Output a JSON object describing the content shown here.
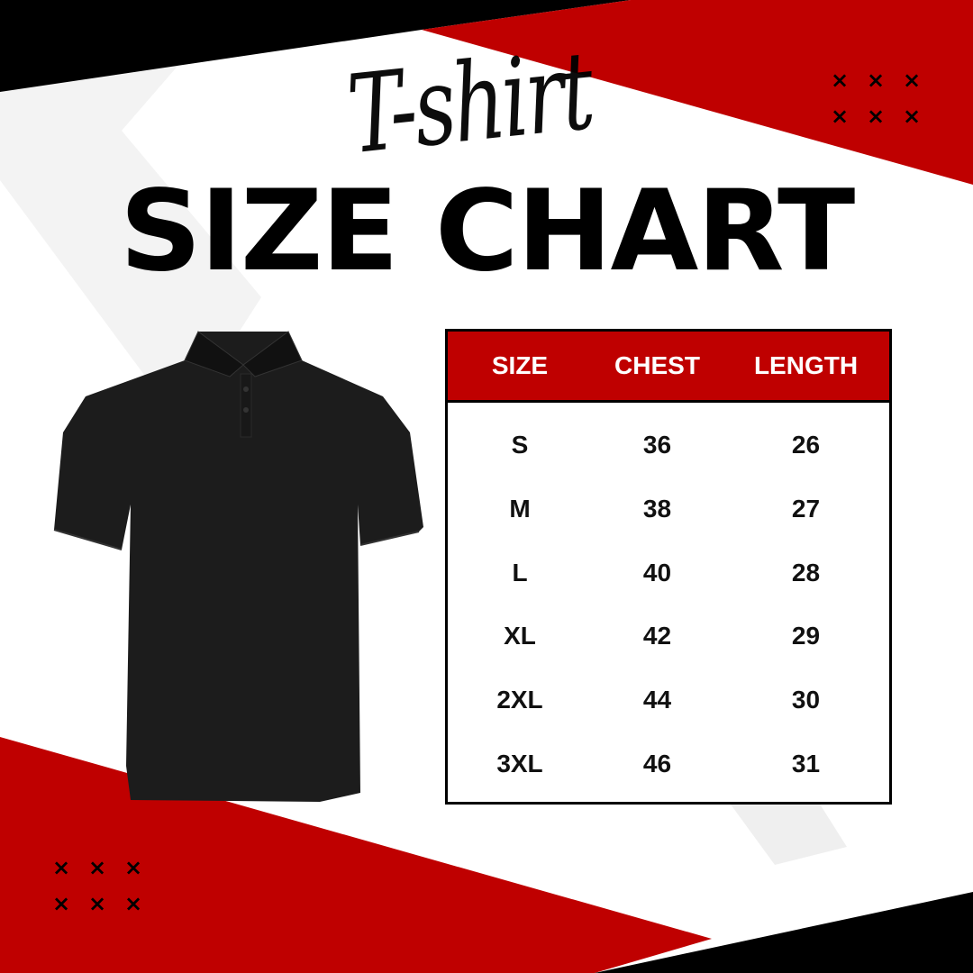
{
  "title": {
    "script": "T-shirt",
    "main": "SIZE CHART"
  },
  "decorations": {
    "cross_glyph": "×",
    "colors": {
      "red": "#bf0000",
      "black": "#000000",
      "white": "#ffffff"
    }
  },
  "product_image": {
    "icon": "polo-shirt-icon",
    "color": "#1c1c1c"
  },
  "table": {
    "headers": [
      "SIZE",
      "CHEST",
      "LENGTH"
    ],
    "rows": [
      [
        "S",
        "36",
        "26"
      ],
      [
        "M",
        "38",
        "27"
      ],
      [
        "L",
        "40",
        "28"
      ],
      [
        "XL",
        "42",
        "29"
      ],
      [
        "2XL",
        "44",
        "30"
      ],
      [
        "3XL",
        "46",
        "31"
      ]
    ]
  }
}
